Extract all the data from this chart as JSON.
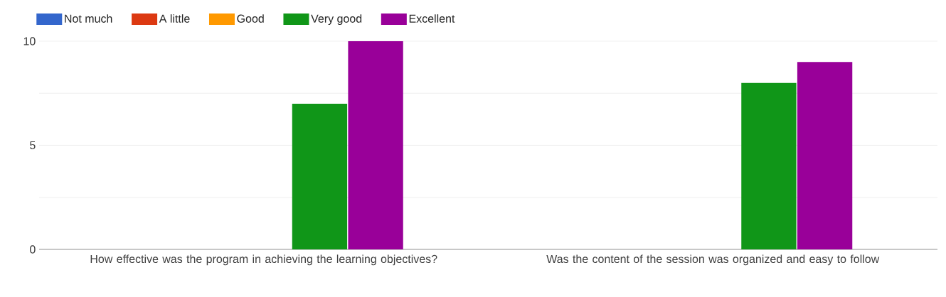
{
  "chart_data": {
    "type": "bar",
    "categories": [
      "How effective was the program in achieving the learning objectives?",
      "Was the content of the session was organized and easy to follow"
    ],
    "series": [
      {
        "name": "Not much",
        "color": "#3366cc",
        "values": [
          0,
          0
        ]
      },
      {
        "name": "A little",
        "color": "#dc3912",
        "values": [
          0,
          0
        ]
      },
      {
        "name": "Good",
        "color": "#ff9900",
        "values": [
          0,
          0
        ]
      },
      {
        "name": "Very good",
        "color": "#109618",
        "values": [
          7,
          8
        ]
      },
      {
        "name": "Excellent",
        "color": "#990099",
        "values": [
          10,
          9
        ]
      }
    ],
    "ylim": [
      0,
      10
    ],
    "yticks": [
      0,
      {
        "value": 2.5,
        "label": null
      },
      5,
      {
        "value": 7.5,
        "label": null
      },
      10
    ],
    "grid": "y",
    "legend": "top"
  }
}
